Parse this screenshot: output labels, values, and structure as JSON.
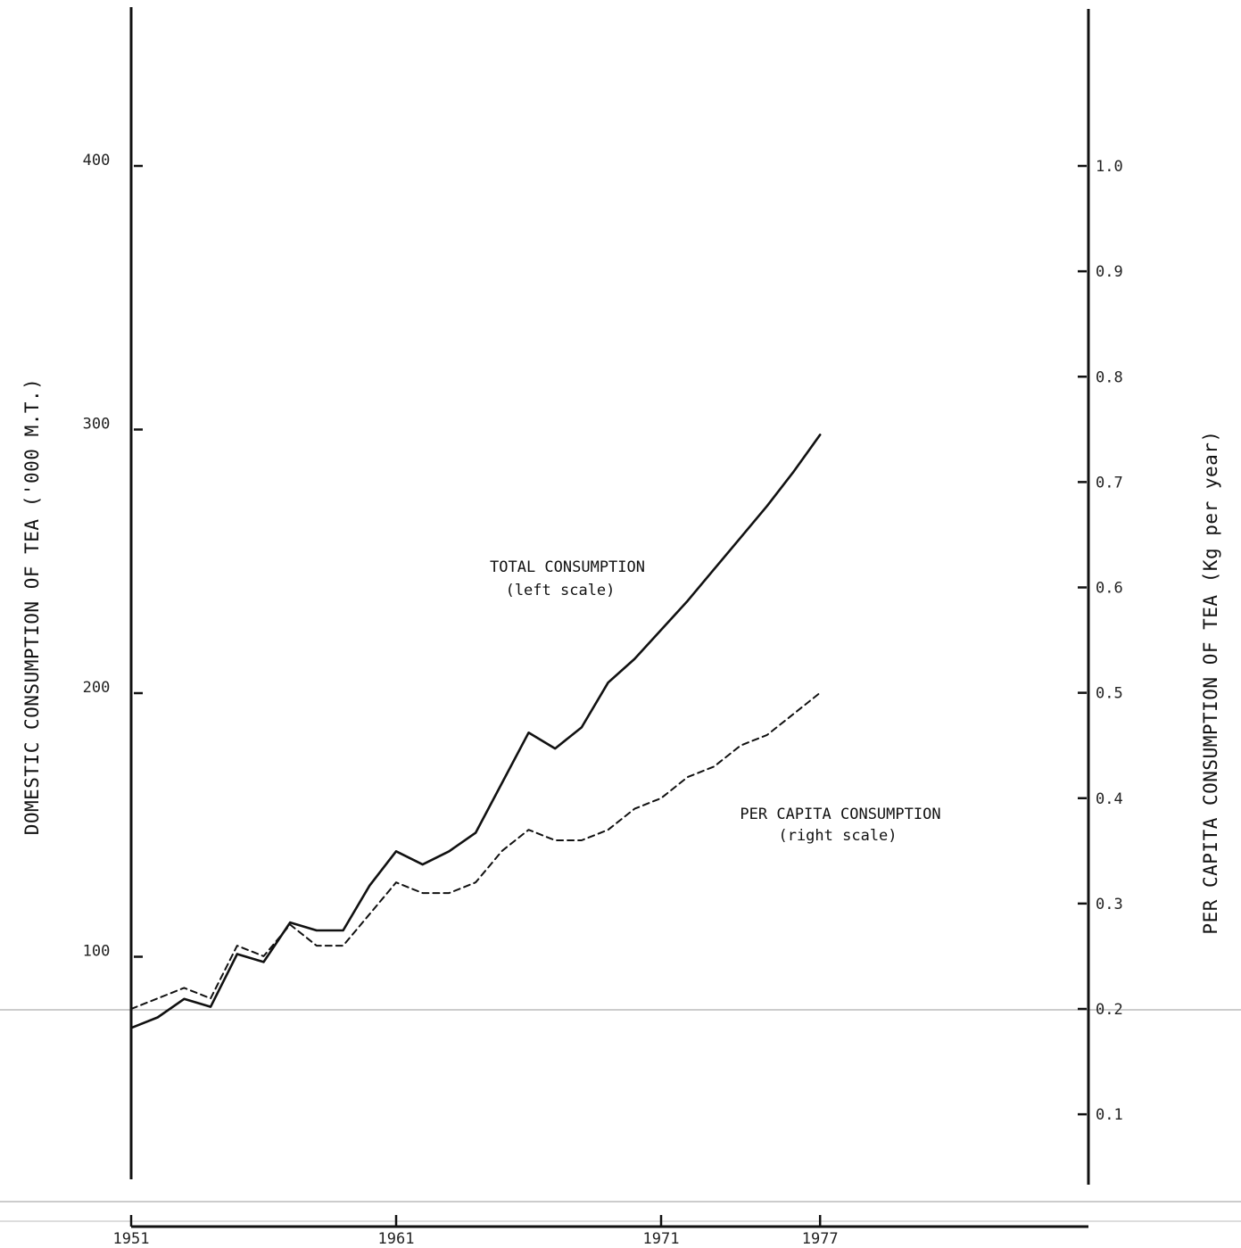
{
  "chart_data": {
    "type": "line",
    "title": "",
    "xlabel": "",
    "ylabel_left": "DOMESTIC CONSUMPTION OF TEA ('000 M.T.)",
    "ylabel_right": "PER CAPITA CONSUMPTION OF TEA (Kg per year)",
    "x_ticks": [
      "1951",
      "1961",
      "1971",
      "1977"
    ],
    "y_left_ticks": [
      "100",
      "200",
      "300",
      "400"
    ],
    "y_right_ticks": [
      "0.1",
      "0.2",
      "0.3",
      "0.4",
      "0.5",
      "0.6",
      "0.7",
      "0.8",
      "0.9",
      "1.0"
    ],
    "xlim": [
      1951,
      1977
    ],
    "ylim_left": [
      15,
      460
    ],
    "ylim_right": [
      0,
      1.11
    ],
    "grid": false,
    "annotations": [
      {
        "lines": [
          "TOTAL CONSUMPTION",
          "(left scale)"
        ]
      },
      {
        "lines": [
          "PER CAPITA CONSUMPTION",
          "(right scale)"
        ]
      }
    ],
    "series": [
      {
        "name": "TOTAL CONSUMPTION",
        "axis": "left",
        "style": "solid",
        "x": [
          1951,
          1952,
          1953,
          1954,
          1955,
          1956,
          1957,
          1958,
          1959,
          1960,
          1961,
          1962,
          1963,
          1964,
          1965,
          1966,
          1967,
          1968,
          1969,
          1970,
          1971,
          1972,
          1973,
          1974,
          1975,
          1976,
          1977
        ],
        "values": [
          73,
          77,
          84,
          81,
          101,
          98,
          113,
          110,
          110,
          127,
          140,
          135,
          140,
          147,
          166,
          185,
          179,
          187,
          204,
          213,
          224,
          235,
          247,
          259,
          271,
          284,
          298
        ]
      },
      {
        "name": "PER CAPITA CONSUMPTION",
        "axis": "right",
        "style": "dashed",
        "x": [
          1951,
          1952,
          1953,
          1954,
          1955,
          1956,
          1957,
          1958,
          1959,
          1960,
          1961,
          1962,
          1963,
          1964,
          1965,
          1966,
          1967,
          1968,
          1969,
          1970,
          1971,
          1972,
          1973,
          1974,
          1975,
          1976,
          1977
        ],
        "values": [
          0.2,
          0.21,
          0.22,
          0.21,
          0.26,
          0.25,
          0.28,
          0.26,
          0.26,
          0.29,
          0.32,
          0.31,
          0.31,
          0.32,
          0.35,
          0.37,
          0.36,
          0.36,
          0.37,
          0.39,
          0.4,
          0.42,
          0.43,
          0.45,
          0.46,
          0.48,
          0.5
        ]
      }
    ]
  }
}
